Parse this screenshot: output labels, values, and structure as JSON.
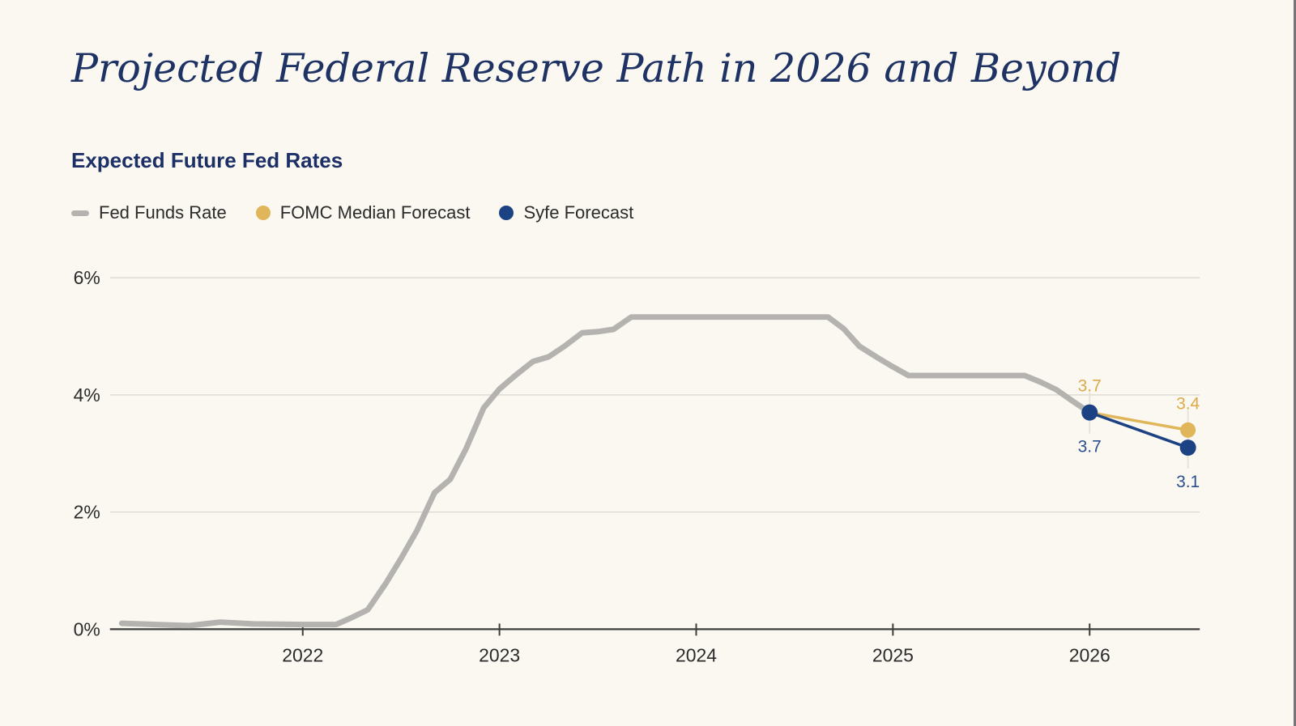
{
  "page": {
    "background": "#faf8f1",
    "right_edge_color": "#757575"
  },
  "header": {
    "title": "Projected Federal Reserve Path in 2026 and Beyond",
    "title_color": "#1e3263"
  },
  "chart_data": {
    "type": "line",
    "title": "Expected Future Fed Rates",
    "title_color": "#1c2f66",
    "xlabel": "",
    "ylabel": "",
    "xlim": [
      2021.02,
      2026.56
    ],
    "ylim": [
      0,
      6
    ],
    "grid": "horizontal",
    "legend_position": "top-left",
    "x_ticks": [
      {
        "value": 2022,
        "label": "2022"
      },
      {
        "value": 2023,
        "label": "2023"
      },
      {
        "value": 2024,
        "label": "2024"
      },
      {
        "value": 2025,
        "label": "2025"
      },
      {
        "value": 2026,
        "label": "2026"
      }
    ],
    "y_ticks": [
      {
        "value": 0,
        "label": "0%"
      },
      {
        "value": 2,
        "label": "2%"
      },
      {
        "value": 4,
        "label": "4%"
      },
      {
        "value": 6,
        "label": "6%"
      }
    ],
    "colors": {
      "grid": "#dcd9d1",
      "axis": "#3d3d3d",
      "tick_text": "#2b2b2b",
      "guide": "#e6e3da"
    },
    "series": [
      {
        "name": "Fed Funds Rate",
        "color": "#b5b3b0",
        "marker": "dash",
        "line_width": 7,
        "dot_radius": 0,
        "points": [
          [
            2021.08,
            0.1
          ],
          [
            2021.25,
            0.08
          ],
          [
            2021.42,
            0.06
          ],
          [
            2021.58,
            0.12
          ],
          [
            2021.75,
            0.09
          ],
          [
            2022.0,
            0.08
          ],
          [
            2022.17,
            0.08
          ],
          [
            2022.25,
            0.2
          ],
          [
            2022.33,
            0.33
          ],
          [
            2022.42,
            0.77
          ],
          [
            2022.5,
            1.21
          ],
          [
            2022.58,
            1.68
          ],
          [
            2022.67,
            2.33
          ],
          [
            2022.75,
            2.56
          ],
          [
            2022.83,
            3.08
          ],
          [
            2022.92,
            3.78
          ],
          [
            2023.0,
            4.1
          ],
          [
            2023.08,
            4.33
          ],
          [
            2023.17,
            4.57
          ],
          [
            2023.25,
            4.65
          ],
          [
            2023.33,
            4.83
          ],
          [
            2023.42,
            5.06
          ],
          [
            2023.5,
            5.08
          ],
          [
            2023.58,
            5.12
          ],
          [
            2023.67,
            5.33
          ],
          [
            2024.67,
            5.33
          ],
          [
            2024.75,
            5.13
          ],
          [
            2024.83,
            4.83
          ],
          [
            2024.92,
            4.64
          ],
          [
            2025.0,
            4.48
          ],
          [
            2025.08,
            4.33
          ],
          [
            2025.67,
            4.33
          ],
          [
            2025.75,
            4.22
          ],
          [
            2025.83,
            4.09
          ],
          [
            2025.92,
            3.88
          ],
          [
            2026.0,
            3.7
          ]
        ]
      },
      {
        "name": "FOMC Median Forecast",
        "color": "#e1b65a",
        "marker": "circle",
        "line_width": 3.5,
        "dot_radius": 9.5,
        "points": [
          [
            2026.0,
            3.7
          ],
          [
            2026.5,
            3.4
          ]
        ]
      },
      {
        "name": "Syfe Forecast",
        "color": "#1d4284",
        "marker": "circle",
        "line_width": 3.5,
        "dot_radius": 10,
        "points": [
          [
            2026.0,
            3.7
          ],
          [
            2026.5,
            3.1
          ]
        ]
      }
    ],
    "annotations": [
      {
        "text": "3.7",
        "x": 2026.0,
        "y": 3.7,
        "color": "#dca94c",
        "position": "above"
      },
      {
        "text": "3.7",
        "x": 2026.0,
        "y": 3.7,
        "color": "#2c4e8e",
        "position": "below"
      },
      {
        "text": "3.4",
        "x": 2026.5,
        "y": 3.4,
        "color": "#dca94c",
        "position": "above"
      },
      {
        "text": "3.1",
        "x": 2026.5,
        "y": 3.1,
        "color": "#2c4e8e",
        "position": "below"
      }
    ]
  }
}
